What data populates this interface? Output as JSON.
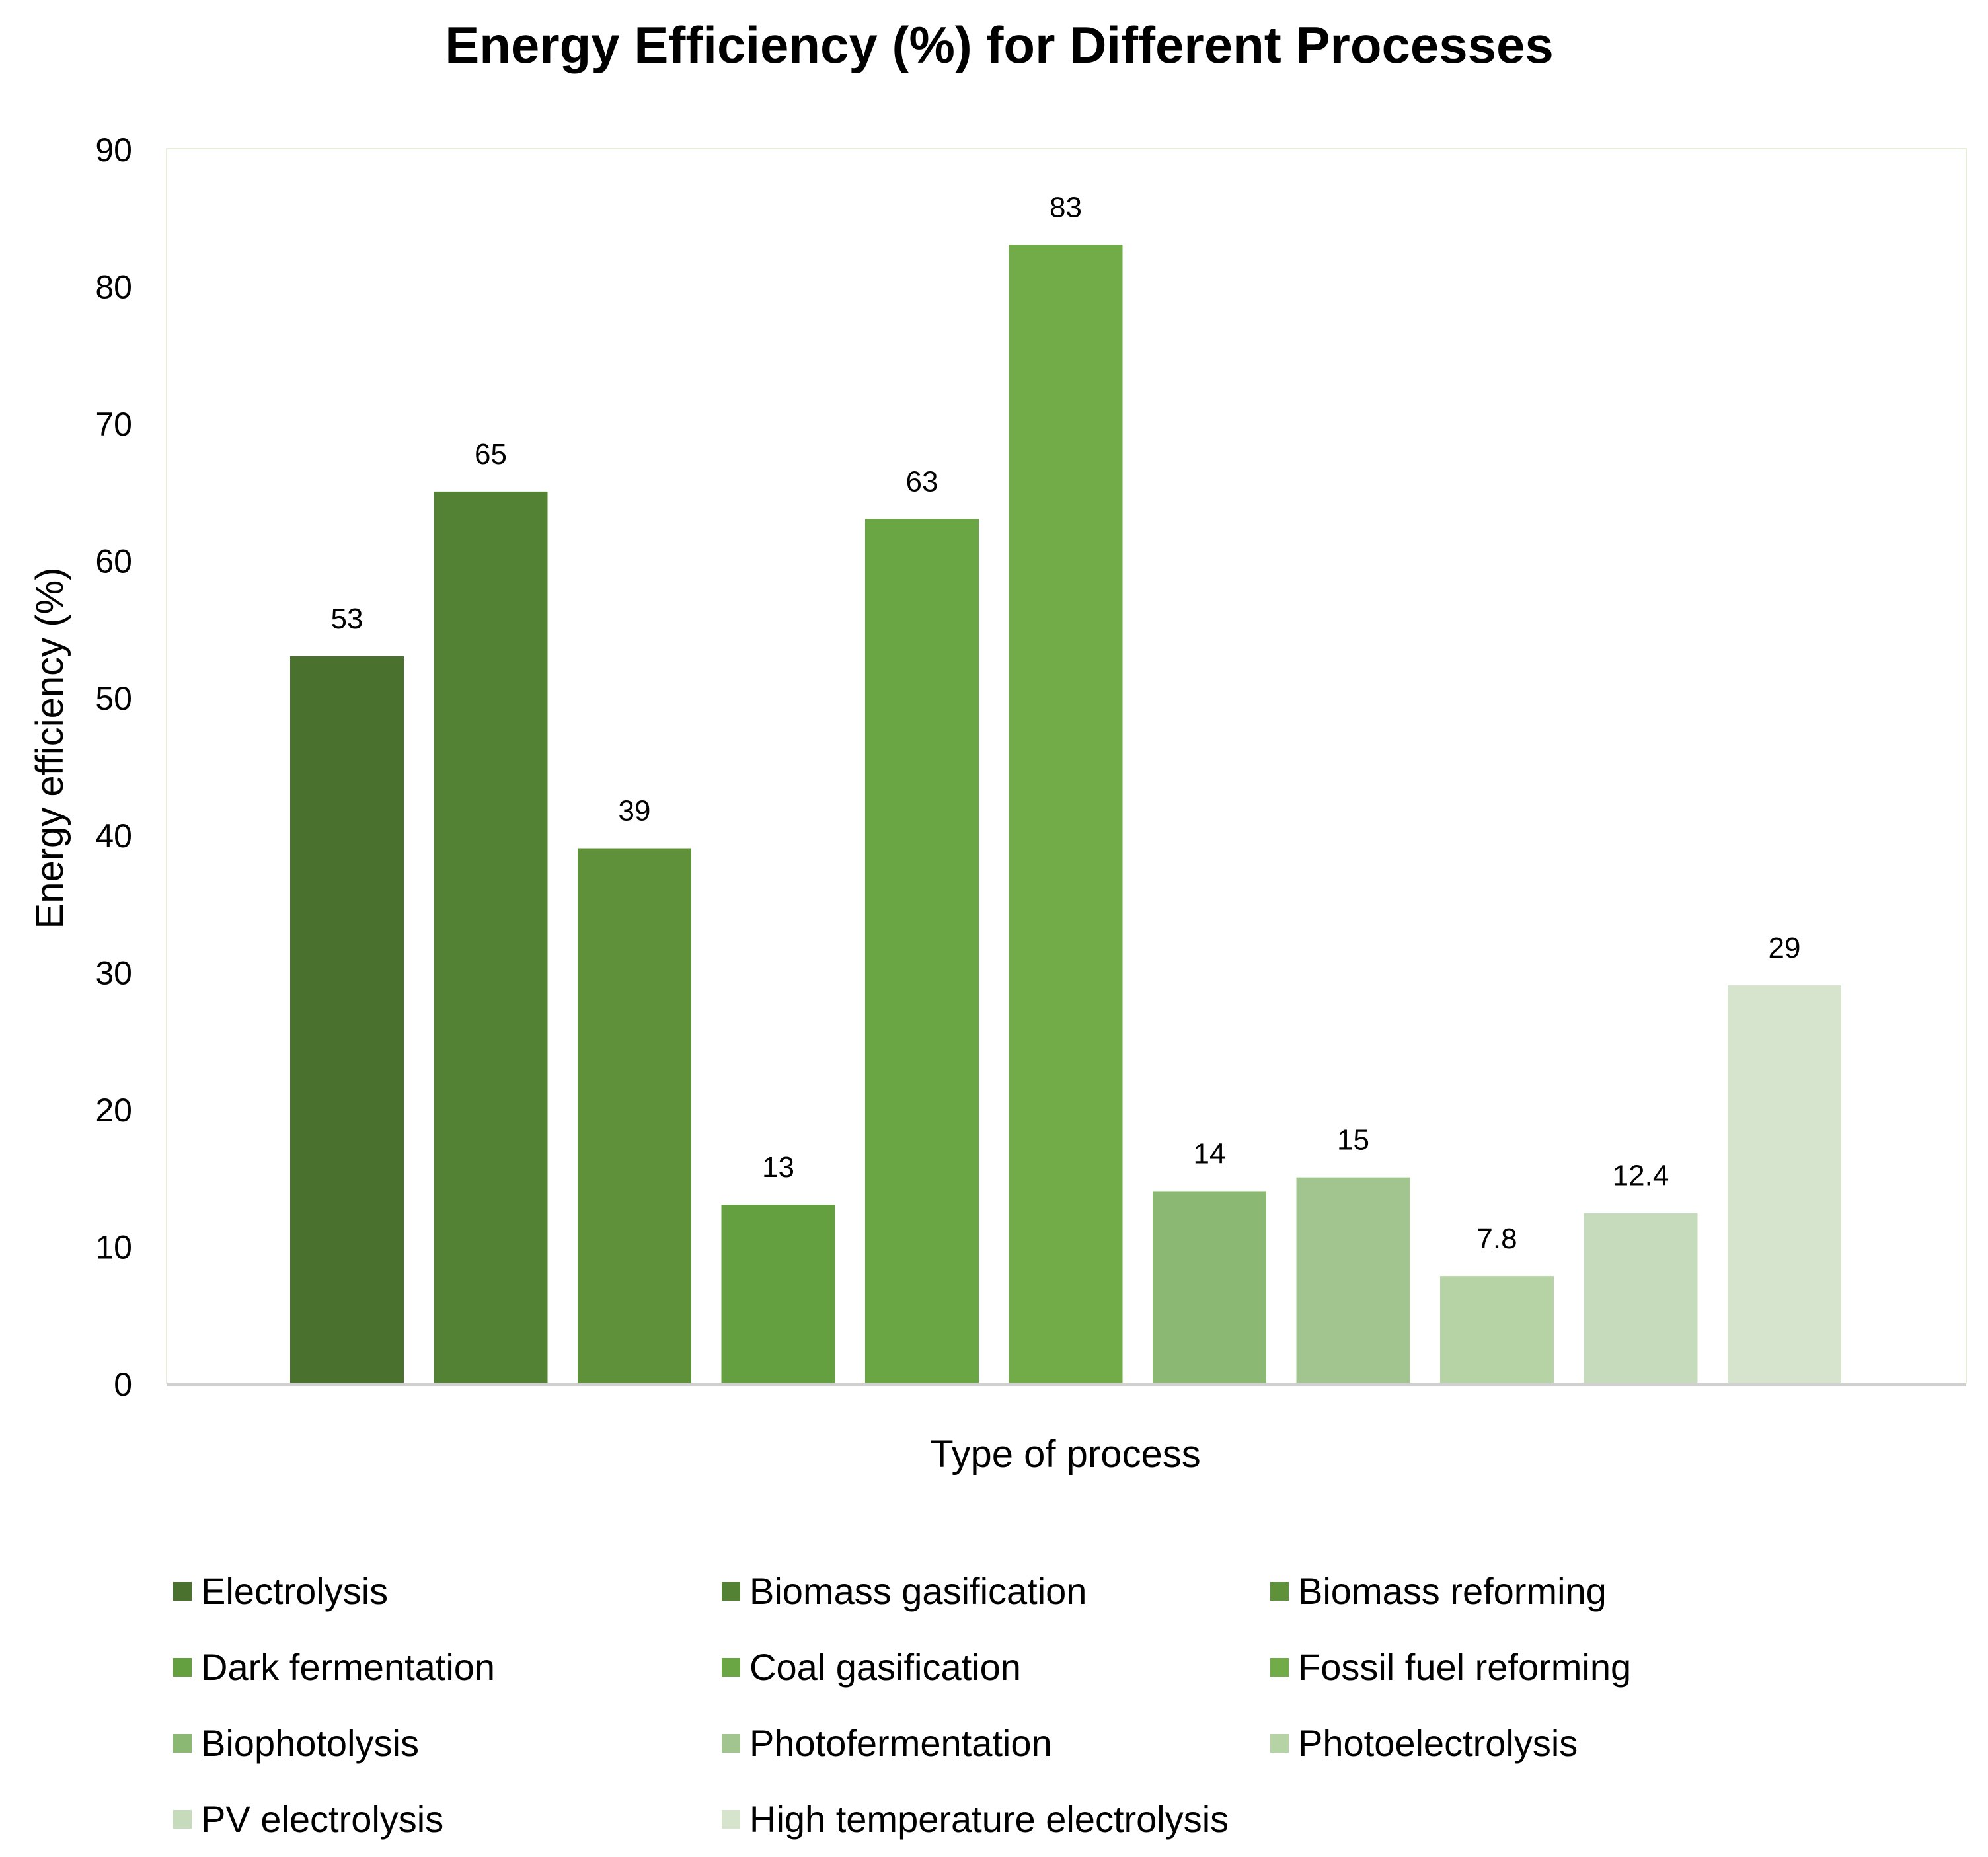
{
  "chart_data": {
    "type": "bar",
    "title": "Energy Efficiency (%) for Different Processes",
    "xlabel": "Type of process",
    "ylabel": "Energy efficiency (%)",
    "ylim": [
      0,
      90
    ],
    "yticks": [
      0,
      10,
      20,
      30,
      40,
      50,
      60,
      70,
      80,
      90
    ],
    "grid": false,
    "legend_position": "bottom",
    "categories": [
      "Electrolysis",
      "Biomass gasification",
      "Biomass reforming",
      "Dark fermentation",
      "Coal gasification",
      "Fossil fuel reforming",
      "Biophotolysis",
      "Photofermentation",
      "Photoelectrolysis",
      "PV electrolysis",
      "High temperature electrolysis"
    ],
    "values": [
      53,
      65,
      39,
      13,
      63,
      83,
      14,
      15,
      7.8,
      12.4,
      29
    ],
    "value_labels": [
      "53",
      "65",
      "39",
      "13",
      "63",
      "83",
      "14",
      "15",
      "7.8",
      "12.4",
      "29"
    ],
    "colors": [
      "#4a712d",
      "#548235",
      "#5e913a",
      "#65a040",
      "#6aa744",
      "#72ac49",
      "#8bb873",
      "#a2c58f",
      "#b6d3a6",
      "#c6dabc",
      "#d6e3cd"
    ]
  }
}
